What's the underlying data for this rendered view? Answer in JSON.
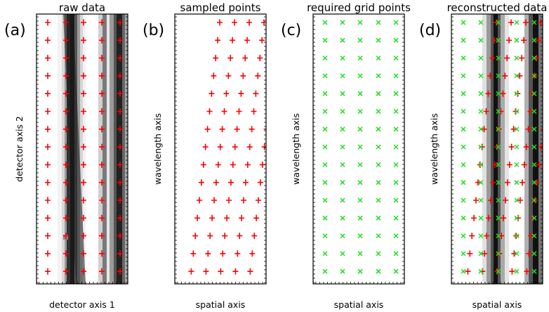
{
  "panels": [
    {
      "id": "a",
      "letter": "(a)",
      "title": "raw data",
      "xlabel": "detector axis 1",
      "ylabel": "detector axis 2",
      "background": "stripes-straight",
      "points": "red-grid"
    },
    {
      "id": "b",
      "letter": "(b)",
      "title": "sampled points",
      "xlabel": "spatial axis",
      "ylabel": "wavelength axis",
      "background": "none",
      "points": "red-sheared"
    },
    {
      "id": "c",
      "letter": "(c)",
      "title": "required grid points",
      "xlabel": "spatial axis",
      "ylabel": "wavelength axis",
      "background": "none",
      "points": "green-grid"
    },
    {
      "id": "d",
      "letter": "(d)",
      "title": "reconstructed data",
      "xlabel": "spatial axis",
      "ylabel": "wavelength axis",
      "background": "stripes-straight-d",
      "points": "red-sheared+green-grid"
    }
  ],
  "colors": {
    "red_marker": "#ff0000",
    "green_marker": "#22dd22",
    "frame": "#000000",
    "stripe_dark": "#111111",
    "stripe_gray": "#8a8a8a"
  }
}
